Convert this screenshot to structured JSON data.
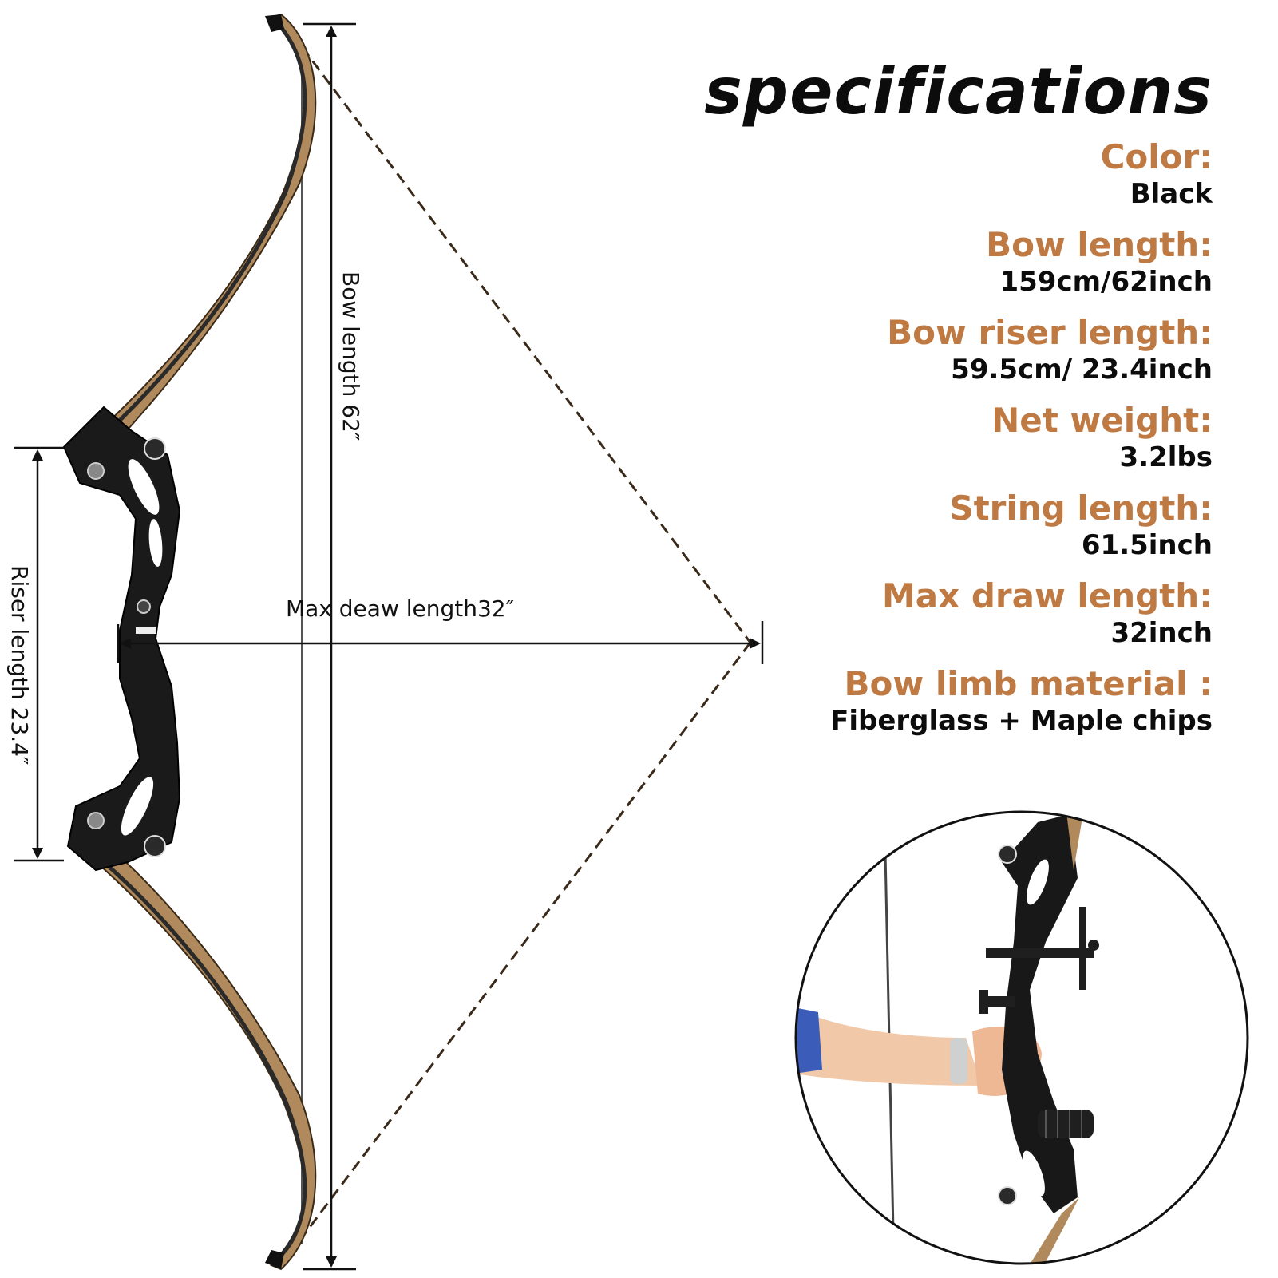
{
  "title": "specifications",
  "specs": [
    {
      "label": "Color:",
      "value": "Black"
    },
    {
      "label": "Bow length:",
      "value": "159cm/62inch"
    },
    {
      "label": "Bow riser length:",
      "value": "59.5cm/ 23.4inch"
    },
    {
      "label": "Net weight:",
      "value": "3.2lbs"
    },
    {
      "label": "String length:",
      "value": "61.5inch"
    },
    {
      "label": "Max draw length:",
      "value": "32inch"
    },
    {
      "label": "Bow limb material :",
      "value": "Fiberglass + Maple chips"
    }
  ],
  "dimensions": {
    "bow_length": "Bow length 62″",
    "riser_length": "Riser length 23.4″",
    "max_draw": "Max deaw length32″"
  },
  "colors": {
    "accent": "#bf7942",
    "text": "#0c0c0c",
    "limb_wood": "#b08a5c",
    "riser": "#1a1a1a"
  }
}
